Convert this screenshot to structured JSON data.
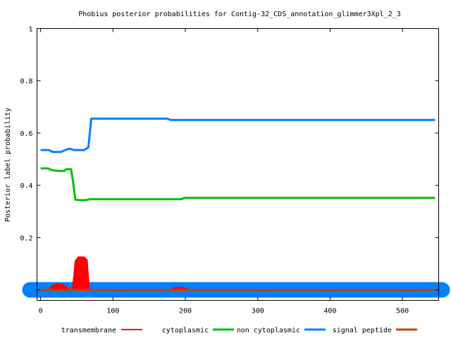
{
  "chart_data": {
    "type": "line",
    "title": "Phobius posterior probabilities for Contig-32_CDS_annotation_glimmer3Xpl_2_3",
    "xlabel": "",
    "ylabel": "Posterior label probability",
    "xlim": [
      -5,
      550
    ],
    "ylim": [
      -0.04,
      1
    ],
    "xticks": [
      0,
      100,
      200,
      300,
      400,
      500
    ],
    "yticks": [
      0.2,
      0.4,
      0.6,
      0.8,
      1
    ],
    "ytick_labels": [
      "0.2",
      "0.4",
      "0.6",
      "0.8",
      "1"
    ],
    "grid": false,
    "legend_position": "bottom",
    "series": [
      {
        "name": "transmembrane",
        "color": "#ff0000",
        "style": "filled-area",
        "points": [
          [
            0,
            0
          ],
          [
            12,
            0
          ],
          [
            16,
            0.015
          ],
          [
            22,
            0.022
          ],
          [
            30,
            0.02
          ],
          [
            36,
            0.01
          ],
          [
            40,
            0
          ],
          [
            44,
            0
          ],
          [
            46,
            0.05
          ],
          [
            48,
            0.11
          ],
          [
            52,
            0.125
          ],
          [
            60,
            0.125
          ],
          [
            64,
            0.115
          ],
          [
            67,
            0
          ],
          [
            180,
            0
          ],
          [
            184,
            0.007
          ],
          [
            192,
            0.009
          ],
          [
            200,
            0.006
          ],
          [
            205,
            0
          ],
          [
            545,
            0
          ]
        ]
      },
      {
        "name": "cytoplasmic",
        "color": "#00c000",
        "points": [
          [
            0,
            0.465
          ],
          [
            10,
            0.465
          ],
          [
            16,
            0.458
          ],
          [
            26,
            0.455
          ],
          [
            32,
            0.455
          ],
          [
            36,
            0.462
          ],
          [
            42,
            0.462
          ],
          [
            45,
            0.41
          ],
          [
            48,
            0.345
          ],
          [
            55,
            0.343
          ],
          [
            62,
            0.343
          ],
          [
            68,
            0.347
          ],
          [
            110,
            0.347
          ],
          [
            195,
            0.347
          ],
          [
            198,
            0.352
          ],
          [
            545,
            0.352
          ]
        ]
      },
      {
        "name": "non cytoplasmic",
        "color": "#0080ff",
        "points": [
          [
            0,
            0.535
          ],
          [
            12,
            0.535
          ],
          [
            16,
            0.528
          ],
          [
            28,
            0.528
          ],
          [
            34,
            0.535
          ],
          [
            40,
            0.54
          ],
          [
            46,
            0.535
          ],
          [
            60,
            0.535
          ],
          [
            66,
            0.545
          ],
          [
            70,
            0.655
          ],
          [
            175,
            0.655
          ],
          [
            180,
            0.65
          ],
          [
            545,
            0.65
          ]
        ]
      },
      {
        "name": "signal peptide",
        "color": "#c84000",
        "points": [
          [
            0,
            0
          ],
          [
            545,
            0
          ]
        ]
      }
    ],
    "legend": {
      "transmembrane": "transmembrane",
      "cytoplasmic": "cytoplasmic",
      "noncyto": "non cytoplasmic",
      "signal": "signal peptide"
    }
  }
}
